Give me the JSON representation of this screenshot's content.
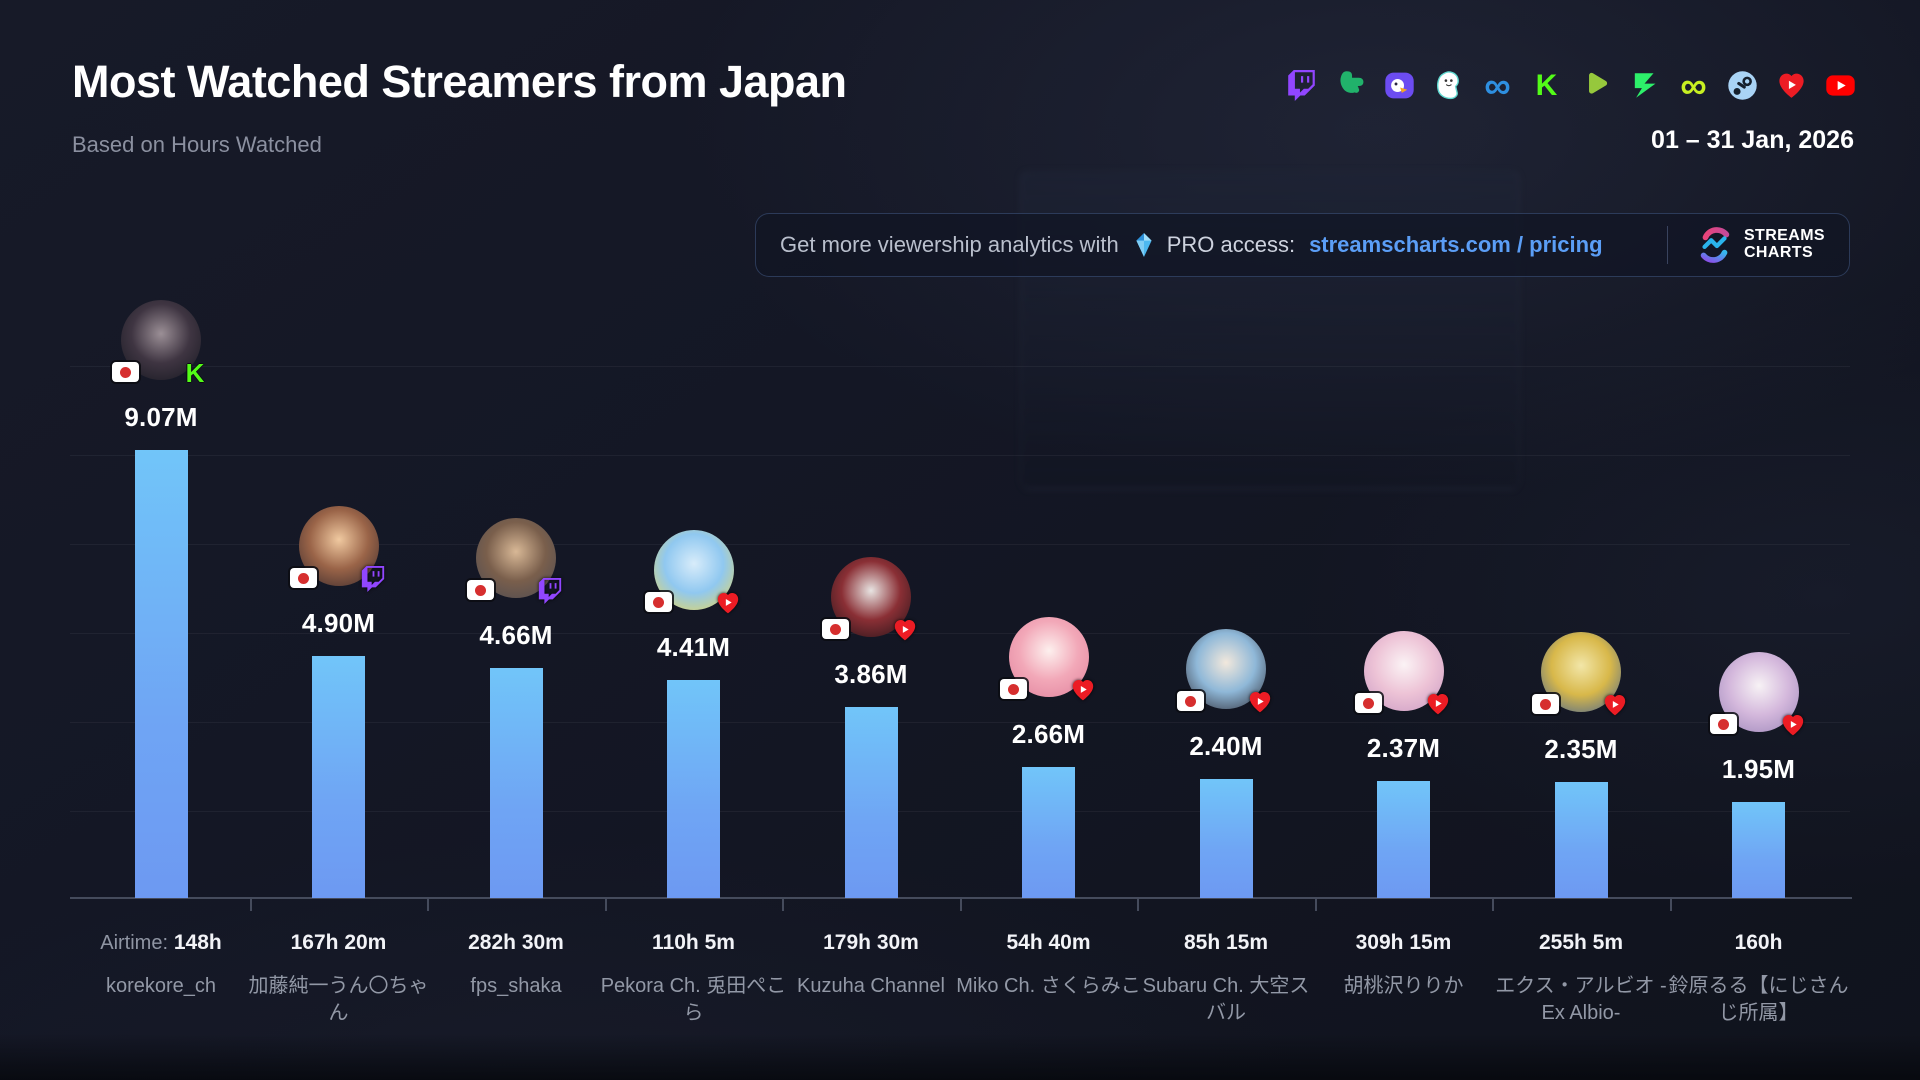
{
  "header": {
    "title": "Most Watched Streamers from Japan",
    "subtitle": "Based on Hours Watched",
    "date_range": "01 – 31 Jan, 2026",
    "platform_icons": [
      "twitch",
      "trovo",
      "nimo-bird",
      "bigo-dino",
      "infinity-blue",
      "kick",
      "play-green",
      "lightning-z",
      "infinity-lime",
      "steam",
      "heart-live",
      "youtube"
    ]
  },
  "promo": {
    "message": "Get more viewership analytics with",
    "pro_label": "PRO access:",
    "link": "streamscharts.com / pricing",
    "brand_line1": "STREAMS",
    "brand_line2": "CHARTS"
  },
  "chart_data": {
    "type": "bar",
    "title": "Most Watched Streamers from Japan",
    "subtitle": "Based on Hours Watched",
    "period": "01 – 31 Jan, 2026",
    "metric": "Hours Watched",
    "unit": "millions of hours",
    "ylim": [
      0,
      9.5
    ],
    "grid": "faint horizontal lines",
    "bar_color_top": "#71c5f9",
    "bar_color_bottom": "#6d99f2",
    "airtime_prefix": "Airtime:",
    "categories": [
      "korekore_ch",
      "加藤純一うん〇ちゃん",
      "fps_shaka",
      "Pekora Ch. 兎田ぺこら",
      "Kuzuha Channel",
      "Miko Ch. さくらみこ",
      "Subaru Ch. 大空スバル",
      "胡桃沢りりか",
      "エクス・アルビオ -Ex Albio-",
      "鈴原るる【にじさんじ所属】"
    ],
    "series": [
      {
        "name": "Hours Watched (M)",
        "values": [
          9.07,
          4.9,
          4.66,
          4.41,
          3.86,
          2.66,
          2.4,
          2.37,
          2.35,
          1.95
        ]
      }
    ],
    "streamers": [
      {
        "name": "korekore_ch",
        "hours_watched": "9.07M",
        "value_millions": 9.07,
        "airtime": "148h",
        "platform": "kick",
        "country_flag": "japan",
        "show_airtime_prefix": true,
        "avatar_colors": [
          "#9b8f96",
          "#3f3542",
          "#15171f"
        ]
      },
      {
        "name": "加藤純一うん〇ちゃん",
        "hours_watched": "4.90M",
        "value_millions": 4.9,
        "airtime": "167h 20m",
        "platform": "twitch",
        "country_flag": "japan",
        "avatar_colors": [
          "#f0c9a0",
          "#9a6448",
          "#35282c"
        ]
      },
      {
        "name": "fps_shaka",
        "hours_watched": "4.66M",
        "value_millions": 4.66,
        "airtime": "282h 30m",
        "platform": "twitch",
        "country_flag": "japan",
        "avatar_colors": [
          "#d8b896",
          "#7a5f4c",
          "#4a4a52"
        ]
      },
      {
        "name": "Pekora Ch. 兎田ぺこら",
        "hours_watched": "4.41M",
        "value_millions": 4.41,
        "airtime": "110h 5m",
        "platform": "heart-live",
        "country_flag": "japan",
        "avatar_colors": [
          "#d8ecfa",
          "#90c8f0",
          "#f0d84e"
        ]
      },
      {
        "name": "Kuzuha Channel",
        "hours_watched": "3.86M",
        "value_millions": 3.86,
        "airtime": "179h 30m",
        "platform": "heart-live",
        "country_flag": "japan",
        "avatar_colors": [
          "#e8e4e2",
          "#8a2f35",
          "#201318"
        ]
      },
      {
        "name": "Miko Ch. さくらみこ",
        "hours_watched": "2.66M",
        "value_millions": 2.66,
        "airtime": "54h 40m",
        "platform": "heart-live",
        "country_flag": "japan",
        "avatar_colors": [
          "#fdf0ee",
          "#f2a8b8",
          "#e0819c"
        ]
      },
      {
        "name": "Subaru Ch. 大空スバル",
        "hours_watched": "2.40M",
        "value_millions": 2.4,
        "airtime": "85h 15m",
        "platform": "heart-live",
        "country_flag": "japan",
        "avatar_colors": [
          "#f2e8dc",
          "#8fb8d8",
          "#2d2a33"
        ]
      },
      {
        "name": "胡桃沢りりか",
        "hours_watched": "2.37M",
        "value_millions": 2.37,
        "airtime": "309h 15m",
        "platform": "heart-live",
        "country_flag": "japan",
        "avatar_colors": [
          "#fbf3f5",
          "#edc3d6",
          "#c898c2"
        ]
      },
      {
        "name": "エクス・アルビオ -Ex Albio-",
        "hours_watched": "2.35M",
        "value_millions": 2.35,
        "airtime": "255h 5m",
        "platform": "heart-live",
        "country_flag": "japan",
        "avatar_colors": [
          "#f2e6a8",
          "#d8b84a",
          "#3d5e96"
        ]
      },
      {
        "name": "鈴原るる【にじさんじ所属】",
        "hours_watched": "1.95M",
        "value_millions": 1.95,
        "airtime": "160h",
        "platform": "heart-live",
        "country_flag": "japan",
        "avatar_colors": [
          "#f7f2f5",
          "#d4b8dc",
          "#9a85b8"
        ]
      }
    ]
  }
}
